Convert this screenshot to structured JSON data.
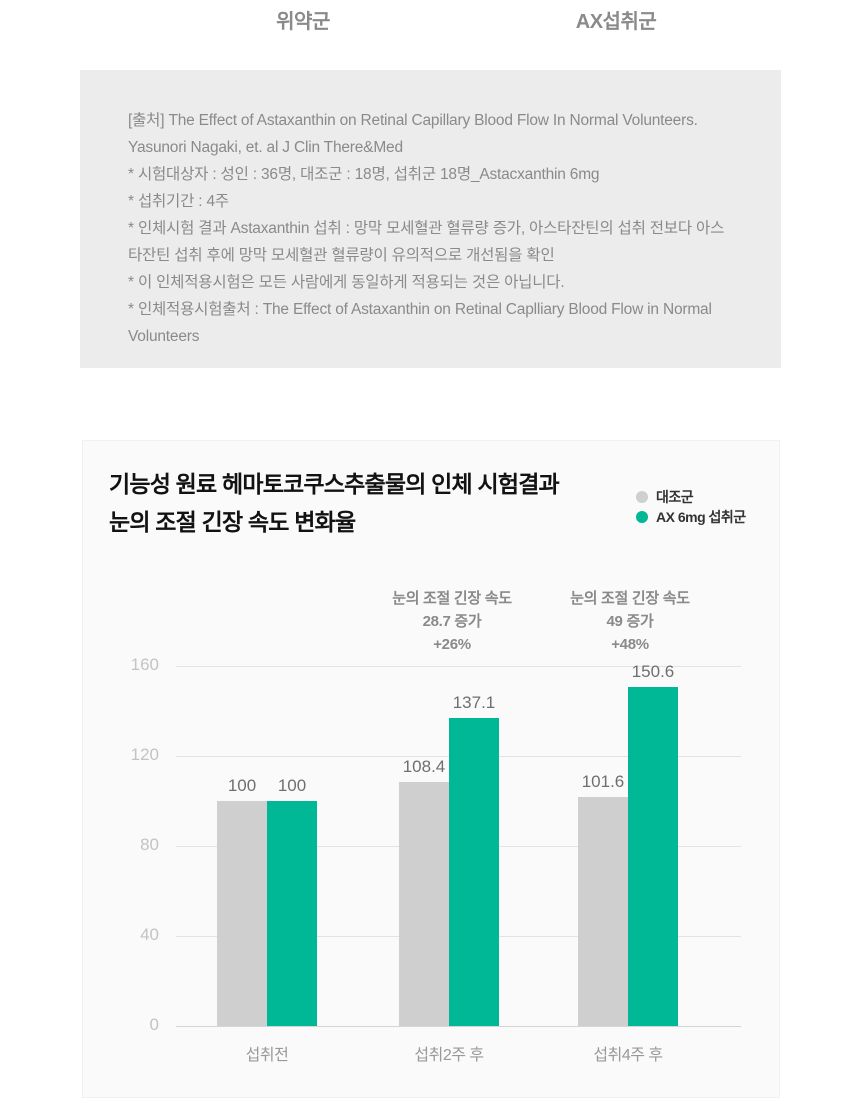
{
  "top_section": {
    "left_header": "위약군",
    "right_header": "AX섭취군"
  },
  "citation": {
    "lines": [
      "[출처] The Effect of Astaxanthin on Retinal Capillary Blood Flow In Normal Volunteers. Yasunori Nagaki, et. al J Clin There&Med",
      "* 시험대상자 : 성인 : 36명,  대조군 : 18명, 섭취군 18명_Astacxanthin 6mg",
      "* 섭취기간 : 4주",
      "* 인체시험 결과 Astaxanthin 섭취 : 망막 모세혈관 혈류량 증가, 아스타잔틴의 섭취 전보다 아스타잔틴 섭취 후에 망막 모세혈관 혈류량이 유의적으로 개선됨을 확인",
      "* 이 인체적용시험은 모든 사람에게 동일하게 적용되는 것은 아닙니다.",
      "* 인체적용시험출처 : The Effect of Astaxanthin on Retinal Caplliary  Blood Flow in Normal Volunteers"
    ]
  },
  "chart_card": {
    "title_line1": "기능성 원료 헤마토코쿠스추출물의 인체 시험결과",
    "title_line2": "눈의 조절 긴장 속도 변화율"
  },
  "chart_data": {
    "type": "bar",
    "title": "기능성 원료 헤마토코쿠스추출물의 인체 시험결과 눈의 조절 긴장 속도 변화율",
    "categories": [
      "섭취전",
      "섭취2주 후",
      "섭취4주 후"
    ],
    "series": [
      {
        "name": "대조군",
        "color": "#cfcfcf",
        "values": [
          100,
          108.4,
          101.6
        ]
      },
      {
        "name": "AX 6mg 섭취군",
        "color": "#00b896",
        "values": [
          100,
          137.1,
          150.6
        ]
      }
    ],
    "yticks": [
      0,
      40,
      80,
      120,
      160
    ],
    "ylim": [
      0,
      160
    ],
    "grid": true,
    "legend_position": "top-right",
    "annotations": [
      {
        "group_index": 1,
        "lines": [
          "눈의 조절 긴장 속도",
          "28.7 증가",
          "+26%"
        ]
      },
      {
        "group_index": 2,
        "lines": [
          "눈의 조절 긴장 속도",
          "49 증가",
          "+48%"
        ]
      }
    ]
  },
  "colors": {
    "accent_teal": "#00b896",
    "bar_gray": "#cfcfcf",
    "citation_box_bg": "#ececec",
    "card_bg": "#fafafa"
  }
}
